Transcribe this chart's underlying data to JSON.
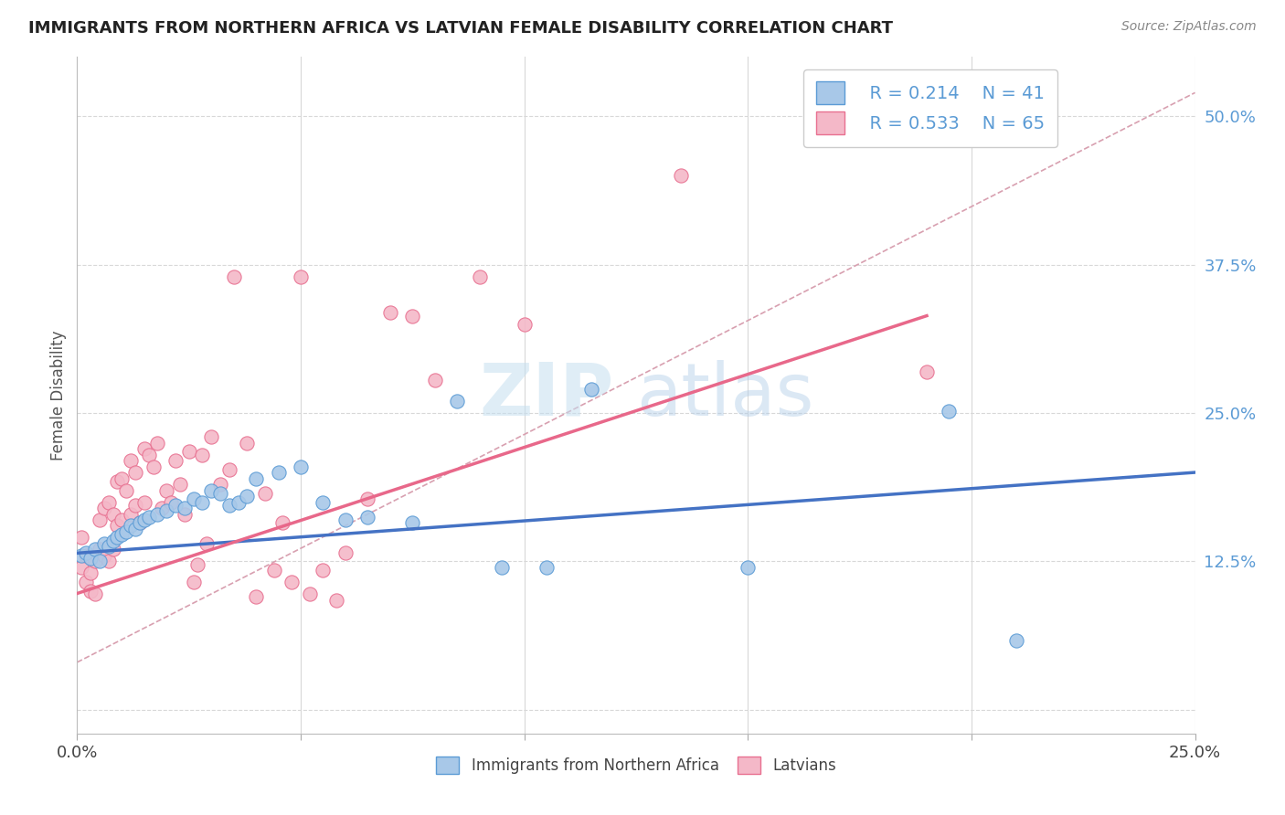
{
  "title": "IMMIGRANTS FROM NORTHERN AFRICA VS LATVIAN FEMALE DISABILITY CORRELATION CHART",
  "source": "Source: ZipAtlas.com",
  "ylabel": "Female Disability",
  "ytick_values": [
    0.0,
    0.125,
    0.25,
    0.375,
    0.5
  ],
  "xrange": [
    0.0,
    0.25
  ],
  "yrange": [
    -0.02,
    0.55
  ],
  "watermark_zip": "ZIP",
  "watermark_atlas": "atlas",
  "legend_r1": "R = 0.214",
  "legend_n1": "N = 41",
  "legend_r2": "R = 0.533",
  "legend_n2": "N = 65",
  "color_blue_fill": "#a8c8e8",
  "color_blue_edge": "#5b9bd5",
  "color_pink_fill": "#f4b8c8",
  "color_pink_edge": "#e87090",
  "color_blue_line": "#4472c4",
  "color_pink_line": "#e8688a",
  "color_diag": "#d8a0b0",
  "color_text_blue": "#5b9bd5",
  "color_grid": "#d8d8d8",
  "blue_scatter_x": [
    0.001,
    0.002,
    0.003,
    0.004,
    0.005,
    0.006,
    0.007,
    0.008,
    0.009,
    0.01,
    0.011,
    0.012,
    0.013,
    0.014,
    0.015,
    0.016,
    0.018,
    0.02,
    0.022,
    0.024,
    0.026,
    0.028,
    0.03,
    0.032,
    0.034,
    0.036,
    0.038,
    0.04,
    0.045,
    0.05,
    0.055,
    0.06,
    0.065,
    0.075,
    0.085,
    0.095,
    0.105,
    0.115,
    0.15,
    0.195,
    0.21
  ],
  "blue_scatter_y": [
    0.13,
    0.132,
    0.128,
    0.135,
    0.125,
    0.14,
    0.138,
    0.142,
    0.145,
    0.148,
    0.15,
    0.155,
    0.152,
    0.158,
    0.16,
    0.162,
    0.165,
    0.168,
    0.172,
    0.17,
    0.178,
    0.175,
    0.185,
    0.182,
    0.172,
    0.175,
    0.18,
    0.195,
    0.2,
    0.205,
    0.175,
    0.16,
    0.162,
    0.158,
    0.26,
    0.12,
    0.12,
    0.27,
    0.12,
    0.252,
    0.058
  ],
  "pink_scatter_x": [
    0.001,
    0.001,
    0.002,
    0.002,
    0.003,
    0.003,
    0.004,
    0.004,
    0.005,
    0.005,
    0.006,
    0.006,
    0.007,
    0.007,
    0.008,
    0.008,
    0.009,
    0.009,
    0.01,
    0.01,
    0.011,
    0.012,
    0.012,
    0.013,
    0.013,
    0.014,
    0.015,
    0.015,
    0.016,
    0.017,
    0.018,
    0.019,
    0.02,
    0.021,
    0.022,
    0.023,
    0.024,
    0.025,
    0.026,
    0.027,
    0.028,
    0.029,
    0.03,
    0.032,
    0.034,
    0.035,
    0.038,
    0.04,
    0.042,
    0.044,
    0.046,
    0.048,
    0.05,
    0.052,
    0.055,
    0.058,
    0.06,
    0.065,
    0.07,
    0.075,
    0.08,
    0.09,
    0.1,
    0.135,
    0.19
  ],
  "pink_scatter_y": [
    0.12,
    0.145,
    0.13,
    0.108,
    0.115,
    0.1,
    0.125,
    0.098,
    0.16,
    0.135,
    0.17,
    0.13,
    0.175,
    0.125,
    0.165,
    0.135,
    0.192,
    0.155,
    0.195,
    0.16,
    0.185,
    0.21,
    0.165,
    0.2,
    0.172,
    0.158,
    0.22,
    0.175,
    0.215,
    0.205,
    0.225,
    0.17,
    0.185,
    0.175,
    0.21,
    0.19,
    0.165,
    0.218,
    0.108,
    0.122,
    0.215,
    0.14,
    0.23,
    0.19,
    0.202,
    0.365,
    0.225,
    0.095,
    0.182,
    0.118,
    0.158,
    0.108,
    0.365,
    0.098,
    0.118,
    0.092,
    0.132,
    0.178,
    0.335,
    0.332,
    0.278,
    0.365,
    0.325,
    0.45,
    0.285
  ],
  "blue_line_x": [
    0.0,
    0.25
  ],
  "blue_line_y": [
    0.132,
    0.2
  ],
  "pink_line_x": [
    0.0,
    0.19
  ],
  "pink_line_y": [
    0.098,
    0.332
  ]
}
